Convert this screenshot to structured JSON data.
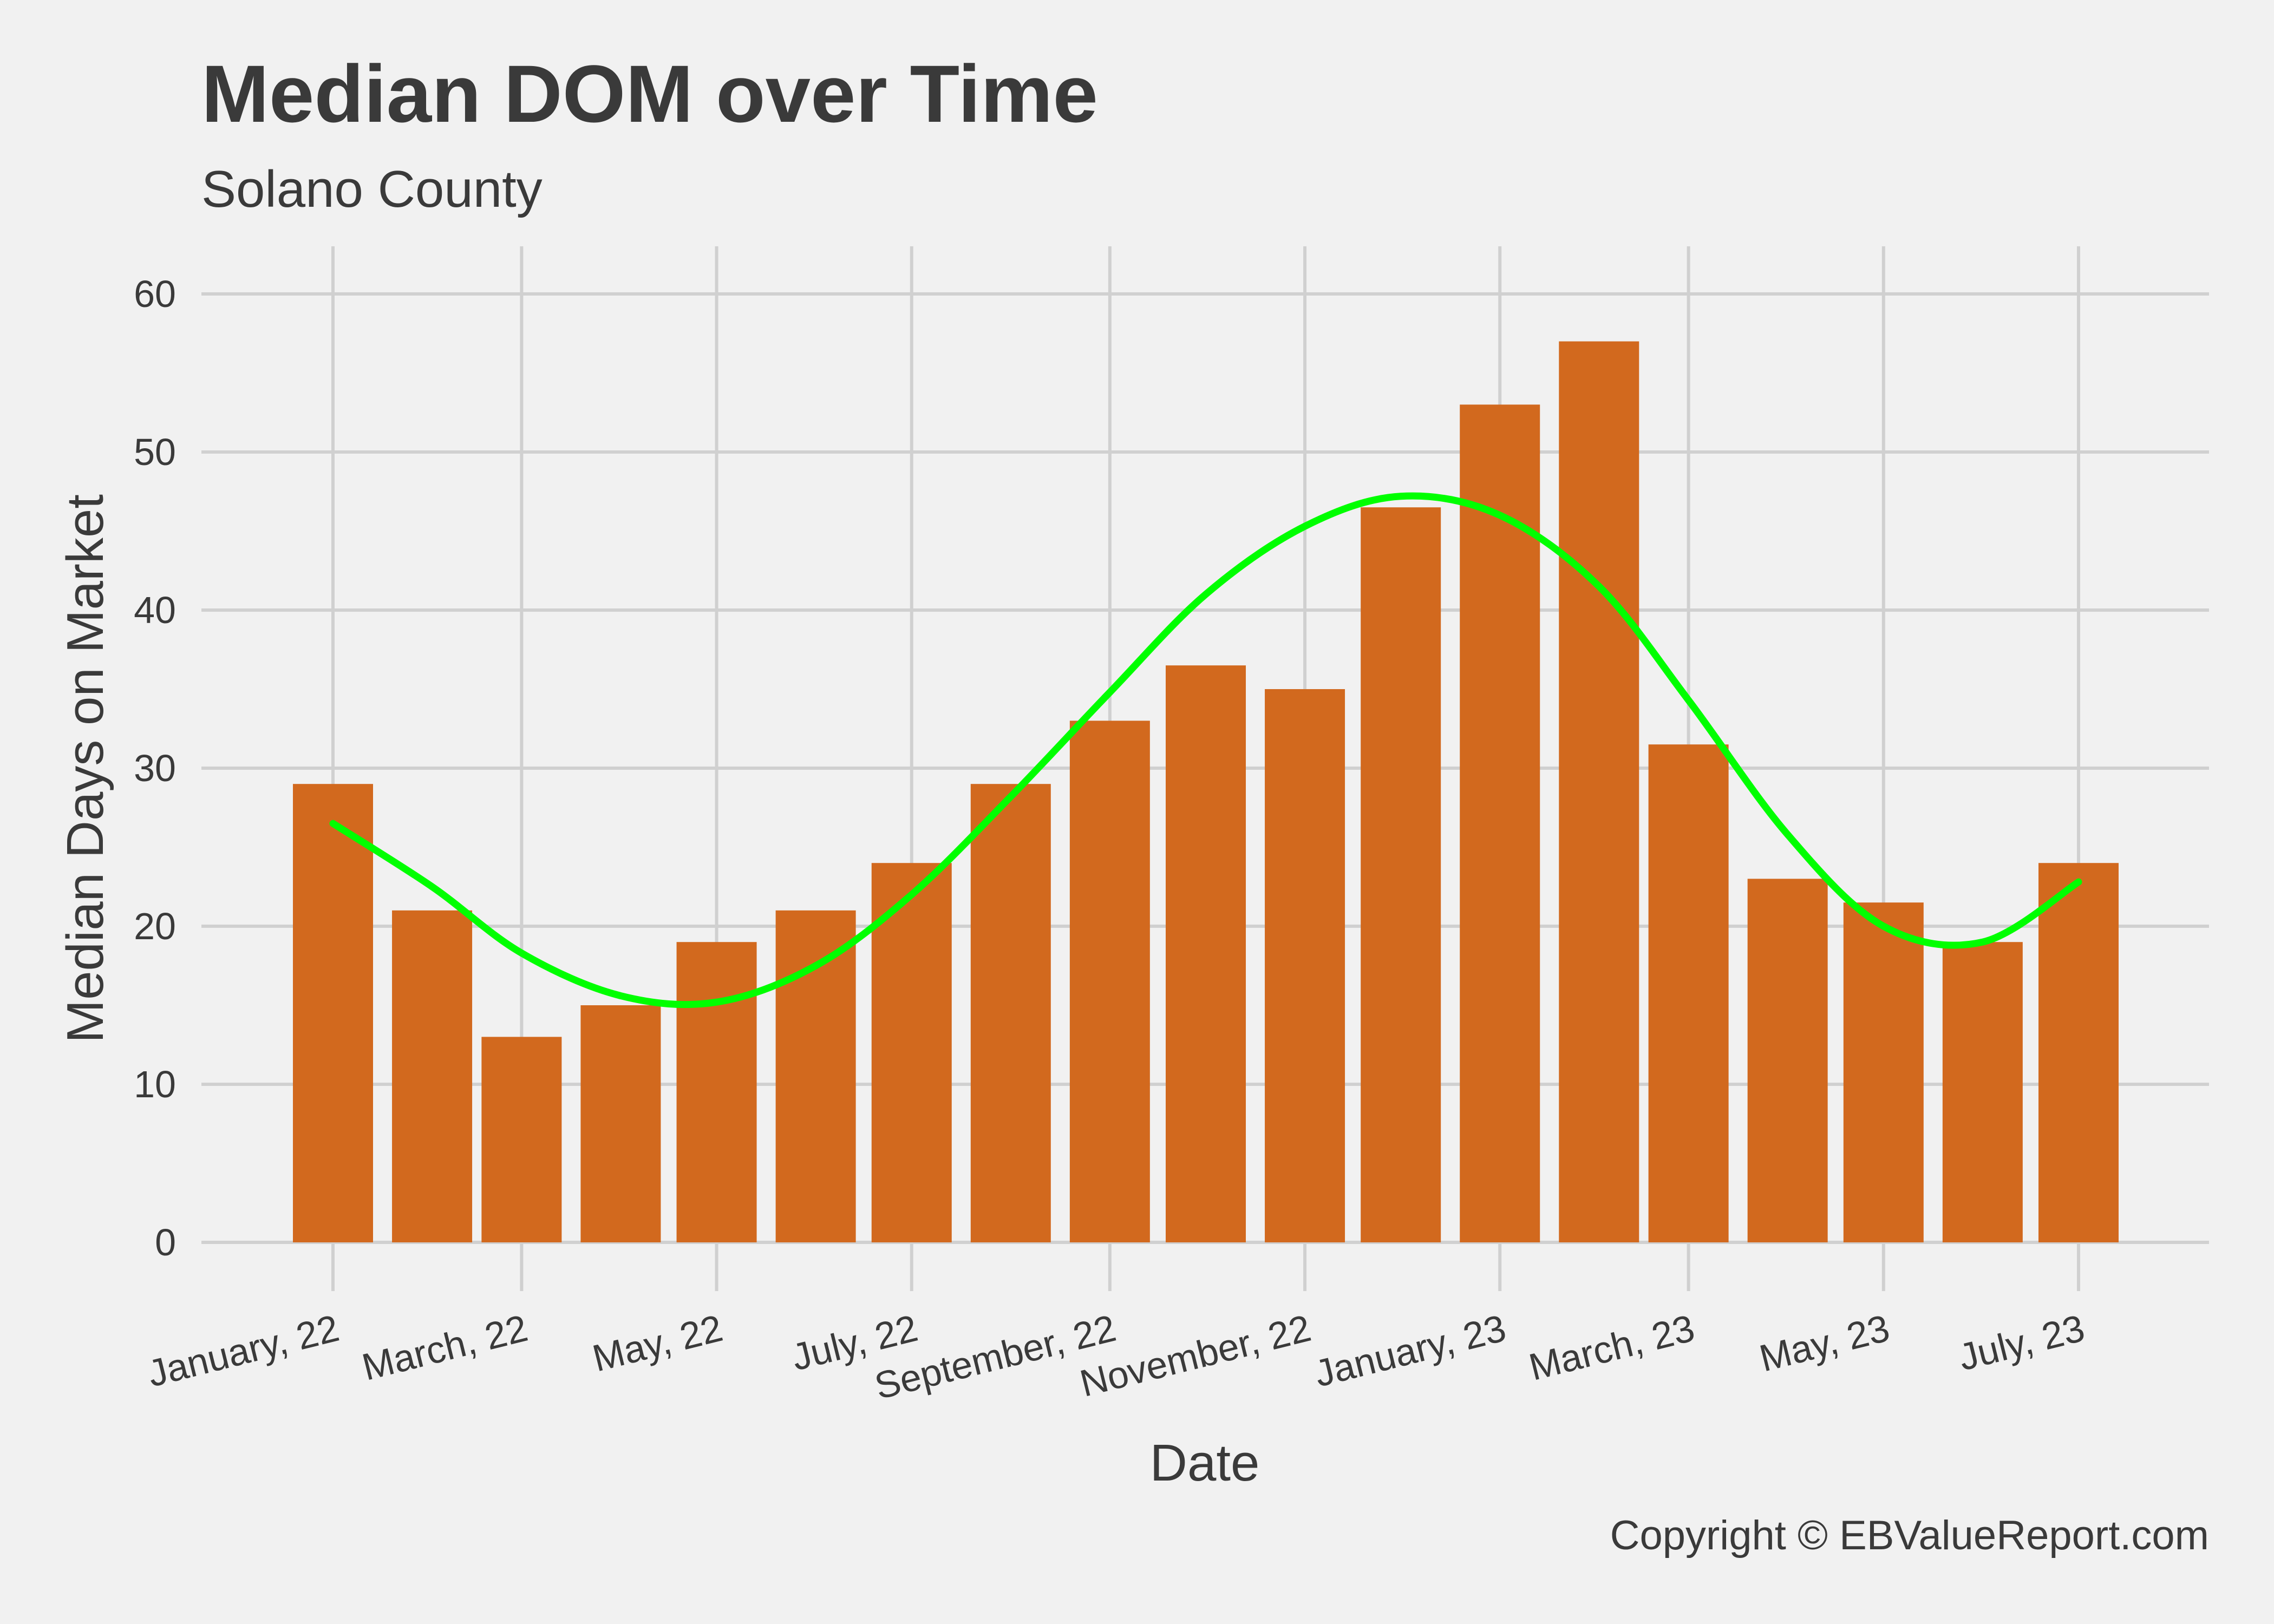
{
  "chart_data": {
    "type": "bar",
    "title": "Median DOM over Time",
    "subtitle": "Solano County",
    "xlabel": "Date",
    "ylabel": "Median Days on Market",
    "caption": "Copyright  © EBValueReport.com",
    "dates": [
      "2022-01-01",
      "2022-02-01",
      "2022-03-01",
      "2022-04-01",
      "2022-05-01",
      "2022-06-01",
      "2022-07-01",
      "2022-08-01",
      "2022-09-01",
      "2022-10-01",
      "2022-11-01",
      "2022-12-01",
      "2023-01-01",
      "2023-02-01",
      "2023-03-01",
      "2023-04-01",
      "2023-05-01",
      "2023-06-01",
      "2023-07-01"
    ],
    "values": [
      29,
      21,
      13,
      15,
      19,
      21,
      24,
      29,
      33,
      36.5,
      35,
      46.5,
      53,
      57,
      31.5,
      23,
      21.5,
      19,
      24
    ],
    "trend_line": [
      26.5,
      22.5,
      18.3,
      15.6,
      15.2,
      17.5,
      22.0,
      28.2,
      34.8,
      41.0,
      45.3,
      47.2,
      46.0,
      41.5,
      34.3,
      25.8,
      20.0,
      19.0,
      22.8
    ],
    "xticks": [
      "January, 22",
      "March, 22",
      "May, 22",
      "July, 22",
      "September, 22",
      "November, 22",
      "January, 23",
      "March, 23",
      "May, 23",
      "July, 23"
    ],
    "xtick_dates": [
      "2022-01-01",
      "2022-03-01",
      "2022-05-01",
      "2022-07-01",
      "2022-09-01",
      "2022-11-01",
      "2023-01-01",
      "2023-03-01",
      "2023-05-01",
      "2023-07-01"
    ],
    "yticks": [
      0,
      10,
      20,
      30,
      40,
      50,
      60
    ],
    "ylim": [
      0,
      63
    ],
    "grid": true,
    "legend": "none",
    "colors": {
      "bar": "#d2691e",
      "trend": "#00ff00",
      "grid": "#d0d0d0",
      "background": "#f1f1f1",
      "text": "#3a3a3a"
    }
  }
}
